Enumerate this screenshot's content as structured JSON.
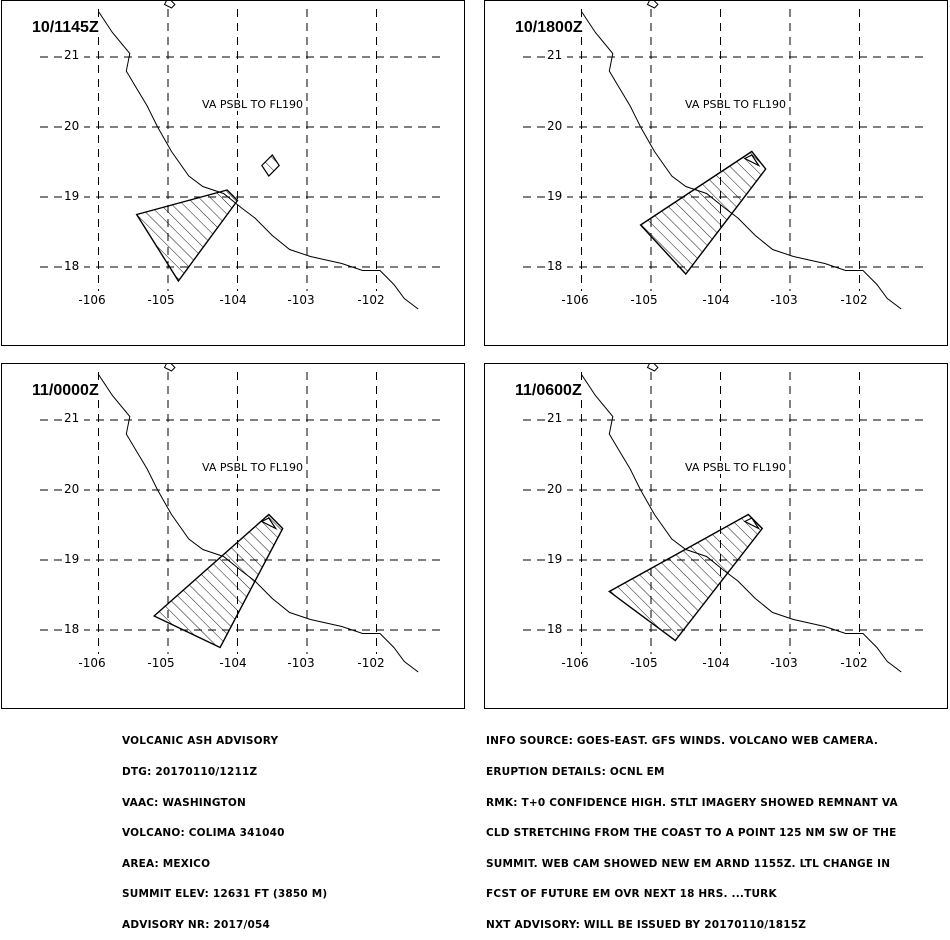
{
  "panels": [
    {
      "time": "10/1145Z",
      "note": "VA PSBL TO FL190"
    },
    {
      "time": "10/1800Z",
      "note": "VA PSBL TO FL190"
    },
    {
      "time": "11/0000Z",
      "note": "VA PSBL TO FL190"
    },
    {
      "time": "11/0600Z",
      "note": "VA PSBL TO FL190"
    }
  ],
  "map": {
    "lat_labels": [
      "21",
      "20",
      "19",
      "18"
    ],
    "lon_labels": [
      "-106",
      "-105",
      "-104",
      "-103",
      "-102"
    ]
  },
  "advisory": {
    "lines": [
      "VOLCANIC ASH ADVISORY",
      "DTG: 20170110/1211Z",
      "VAAC: WASHINGTON",
      "VOLCANO: COLIMA 341040",
      "AREA: MEXICO",
      "SUMMIT ELEV: 12631 FT (3850 M)",
      "ADVISORY NR: 2017/054"
    ]
  },
  "remarks": {
    "lines": [
      "INFO SOURCE: GOES-EAST. GFS WINDS. VOLCANO WEB CAMERA.",
      "ERUPTION DETAILS: OCNL EM",
      "RMK: T+0 CONFIDENCE HIGH. STLT IMAGERY SHOWED REMNANT VA",
      "CLD STRETCHING FROM THE COAST TO A POINT 125 NM SW OF THE",
      "SUMMIT. WEB CAM SHOWED NEW EM ARND 1155Z. LTL CHANGE IN",
      "FCST OF FUTURE EM OVR NEXT 18 HRS. ...TURK",
      "NXT ADVISORY: WILL BE ISSUED BY 20170110/1815Z"
    ]
  },
  "colors": {
    "line": "#000000",
    "background": "#ffffff"
  }
}
